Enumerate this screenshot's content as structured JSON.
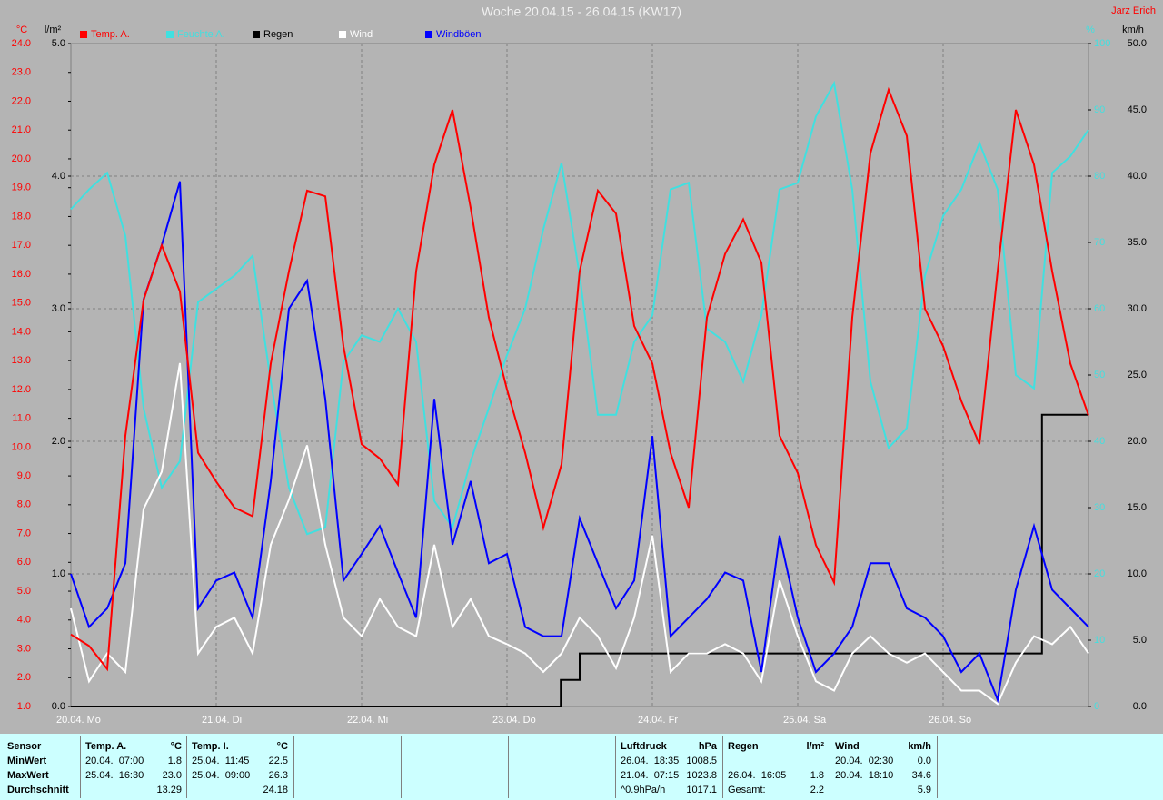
{
  "chart_data": {
    "type": "line",
    "title": "Woche 20.04.15 - 26.04.15 (KW17)",
    "author": "Jarz Erich",
    "y_label": "°C",
    "y2_label": "l/m²",
    "y3_label": "%",
    "y4_label": "km/h",
    "xlim": [
      0,
      7
    ],
    "xticks": [
      {
        "value": 0,
        "label": "20.04. Mo"
      },
      {
        "value": 1,
        "label": "21.04. Di"
      },
      {
        "value": 2,
        "label": "22.04. Mi"
      },
      {
        "value": 3,
        "label": "23.04. Do"
      },
      {
        "value": 4,
        "label": "24.04. Fr"
      },
      {
        "value": 5,
        "label": "25.04. Sa"
      },
      {
        "value": 6,
        "label": "26.04. So"
      }
    ],
    "ylim": [
      1,
      24
    ],
    "yticks": [
      {
        "value": 1,
        "label": "1.0"
      },
      {
        "value": 2,
        "label": "2.0"
      },
      {
        "value": 3,
        "label": "3.0"
      },
      {
        "value": 4,
        "label": "4.0"
      },
      {
        "value": 5,
        "label": "5.0"
      },
      {
        "value": 6,
        "label": "6.0"
      },
      {
        "value": 7,
        "label": "7.0"
      },
      {
        "value": 8,
        "label": "8.0"
      },
      {
        "value": 9,
        "label": "9.0"
      },
      {
        "value": 10,
        "label": "10.0"
      },
      {
        "value": 11,
        "label": "11.0"
      },
      {
        "value": 12,
        "label": "12.0"
      },
      {
        "value": 13,
        "label": "13.0"
      },
      {
        "value": 14,
        "label": "14.0"
      },
      {
        "value": 15,
        "label": "15.0"
      },
      {
        "value": 16,
        "label": "16.0"
      },
      {
        "value": 17,
        "label": "17.0"
      },
      {
        "value": 18,
        "label": "18.0"
      },
      {
        "value": 19,
        "label": "19.0"
      },
      {
        "value": 20,
        "label": "20.0"
      },
      {
        "value": 21,
        "label": "21.0"
      },
      {
        "value": 22,
        "label": "22.0"
      },
      {
        "value": 23,
        "label": "23.0"
      },
      {
        "value": 24,
        "label": "24.0"
      }
    ],
    "y2lim": [
      0,
      5
    ],
    "y2ticks": [
      {
        "value": 0,
        "label": "0.0"
      },
      {
        "value": 1,
        "label": "1.0"
      },
      {
        "value": 2,
        "label": "2.0"
      },
      {
        "value": 3,
        "label": "3.0"
      },
      {
        "value": 4,
        "label": "4.0"
      },
      {
        "value": 5,
        "label": "5.0"
      }
    ],
    "y3lim": [
      0,
      100
    ],
    "y3ticks": [
      0,
      10,
      20,
      30,
      40,
      50,
      60,
      70,
      80,
      90,
      100
    ],
    "y4lim": [
      0,
      50
    ],
    "y4ticks": [
      {
        "value": 0,
        "label": "0.0"
      },
      {
        "value": 5,
        "label": "5.0"
      },
      {
        "value": 10,
        "label": "10.0"
      },
      {
        "value": 15,
        "label": "15.0"
      },
      {
        "value": 20,
        "label": "20.0"
      },
      {
        "value": 25,
        "label": "25.0"
      },
      {
        "value": 30,
        "label": "30.0"
      },
      {
        "value": 35,
        "label": "35.0"
      },
      {
        "value": 40,
        "label": "40.0"
      },
      {
        "value": 45,
        "label": "45.0"
      },
      {
        "value": 50,
        "label": "50.0"
      }
    ],
    "grid": true,
    "x": [
      0,
      0.125,
      0.25,
      0.375,
      0.5,
      0.625,
      0.75,
      0.875,
      1,
      1.125,
      1.25,
      1.375,
      1.5,
      1.625,
      1.75,
      1.875,
      2,
      2.125,
      2.25,
      2.375,
      2.5,
      2.625,
      2.75,
      2.875,
      3,
      3.125,
      3.25,
      3.375,
      3.5,
      3.625,
      3.75,
      3.875,
      4,
      4.125,
      4.25,
      4.375,
      4.5,
      4.625,
      4.75,
      4.875,
      5,
      5.125,
      5.25,
      5.375,
      5.5,
      5.625,
      5.75,
      5.875,
      6,
      6.125,
      6.25,
      6.375,
      6.5,
      6.625,
      6.75,
      6.875,
      7
    ],
    "series": [
      {
        "name": "Temp. A.",
        "color": "#ff0000",
        "axis": "y",
        "values": [
          3.5,
          3.1,
          2.3,
          10.4,
          15.1,
          17.0,
          15.4,
          9.8,
          8.8,
          7.9,
          7.6,
          12.9,
          16.1,
          18.9,
          18.7,
          13.5,
          10.1,
          9.6,
          8.7,
          16.1,
          19.8,
          21.7,
          18.3,
          14.5,
          12.0,
          9.8,
          7.2,
          9.4,
          16.1,
          18.9,
          18.1,
          14.2,
          12.9,
          9.8,
          7.9,
          14.5,
          16.7,
          17.9,
          16.4,
          10.4,
          9.1,
          6.6,
          5.3,
          14.5,
          20.2,
          22.4,
          20.8,
          14.8,
          13.5,
          11.6,
          10.1,
          16.1,
          21.7,
          19.8,
          16.1,
          12.9,
          11.1
        ]
      },
      {
        "name": "Feuchte A.",
        "color": "#40e0e0",
        "axis": "y3",
        "values": [
          75,
          78,
          80.5,
          71,
          45,
          33,
          37,
          61,
          63,
          65,
          68,
          49,
          33,
          26,
          27,
          52,
          56,
          55,
          60,
          55,
          31,
          27,
          37,
          45,
          53,
          60,
          72,
          82,
          65,
          44,
          44,
          55,
          59,
          78,
          79,
          57,
          55,
          49,
          59,
          78,
          79,
          89,
          94,
          78,
          49,
          39,
          42,
          65,
          74,
          78,
          85,
          78,
          50,
          48,
          80.5,
          83,
          87
        ]
      },
      {
        "name": "Regen",
        "color": "#000000",
        "axis": "y2",
        "x": [
          0,
          3.37,
          3.37,
          3.5,
          3.5,
          6.68,
          6.68,
          7
        ],
        "values": [
          0,
          0,
          0.2,
          0.2,
          0.4,
          0.4,
          2.2,
          2.2
        ]
      },
      {
        "name": "Wind",
        "color": "#ffffff",
        "axis": "y4",
        "values": [
          7.4,
          1.9,
          4.0,
          2.6,
          14.9,
          17.7,
          25.9,
          4.0,
          6.0,
          6.7,
          4.0,
          12.2,
          15.6,
          19.7,
          12.2,
          6.7,
          5.3,
          8.1,
          6.0,
          5.3,
          12.2,
          6.0,
          8.1,
          5.3,
          4.7,
          4.0,
          2.6,
          4.0,
          6.7,
          5.3,
          2.9,
          6.7,
          12.9,
          2.6,
          4.0,
          4.0,
          4.7,
          4.0,
          1.9,
          9.5,
          5.3,
          1.9,
          1.2,
          4.0,
          5.3,
          4.0,
          3.3,
          4.0,
          2.6,
          1.2,
          1.2,
          0.2,
          3.3,
          5.3,
          4.7,
          6.0,
          4.0
        ]
      },
      {
        "name": "Windböen",
        "color": "#0000ff",
        "axis": "y4",
        "values": [
          10.0,
          6.0,
          7.4,
          10.8,
          30.7,
          34.8,
          39.6,
          7.4,
          9.5,
          10.1,
          6.7,
          17.0,
          30.0,
          32.1,
          23.2,
          9.5,
          11.5,
          13.6,
          10.1,
          6.7,
          23.2,
          12.2,
          17.0,
          10.8,
          11.5,
          6.0,
          5.3,
          5.3,
          14.2,
          10.8,
          7.4,
          9.5,
          20.4,
          5.3,
          6.7,
          8.1,
          10.1,
          9.5,
          2.6,
          12.9,
          6.7,
          2.6,
          4.0,
          6.0,
          10.8,
          10.8,
          7.4,
          6.7,
          5.3,
          2.6,
          4.0,
          0.5,
          8.8,
          13.6,
          8.8,
          7.4,
          6.0
        ]
      }
    ]
  },
  "stats": {
    "row_labels": [
      "Sensor",
      "MinWert",
      "MaxWert",
      "Durchschnitt"
    ],
    "blocks": [
      {
        "name": "Temp. A.",
        "unit": "°C",
        "rows": [
          [
            "20.04.  07:00",
            "1.8"
          ],
          [
            "25.04.  16:30",
            "23.0"
          ],
          [
            null,
            "13.29"
          ]
        ]
      },
      {
        "name": "Temp. I.",
        "unit": "°C",
        "rows": [
          [
            "25.04.  11:45",
            "22.5"
          ],
          [
            "25.04.  09:00",
            "26.3"
          ],
          [
            null,
            "24.18"
          ]
        ]
      },
      {
        "name": null,
        "unit": null,
        "rows": []
      },
      {
        "name": null,
        "unit": null,
        "rows": []
      },
      {
        "name": null,
        "unit": null,
        "rows": []
      },
      {
        "name": "Luftdruck",
        "unit": "hPa",
        "rows": [
          [
            "26.04.  18:35",
            "1008.5"
          ],
          [
            "21.04.  07:15",
            "1023.8"
          ],
          [
            "^0.9hPa/h",
            "1017.1"
          ]
        ]
      },
      {
        "name": "Regen",
        "unit": "l/m²",
        "rows": [
          [
            null,
            null
          ],
          [
            "26.04.  16:05",
            "1.8"
          ],
          [
            "Gesamt:",
            "2.2"
          ]
        ]
      },
      {
        "name": "Wind",
        "unit": "km/h",
        "rows": [
          [
            "20.04.  02:30",
            "0.0"
          ],
          [
            "20.04.  18:10",
            "34.6"
          ],
          [
            null,
            "5.9"
          ]
        ]
      }
    ]
  }
}
